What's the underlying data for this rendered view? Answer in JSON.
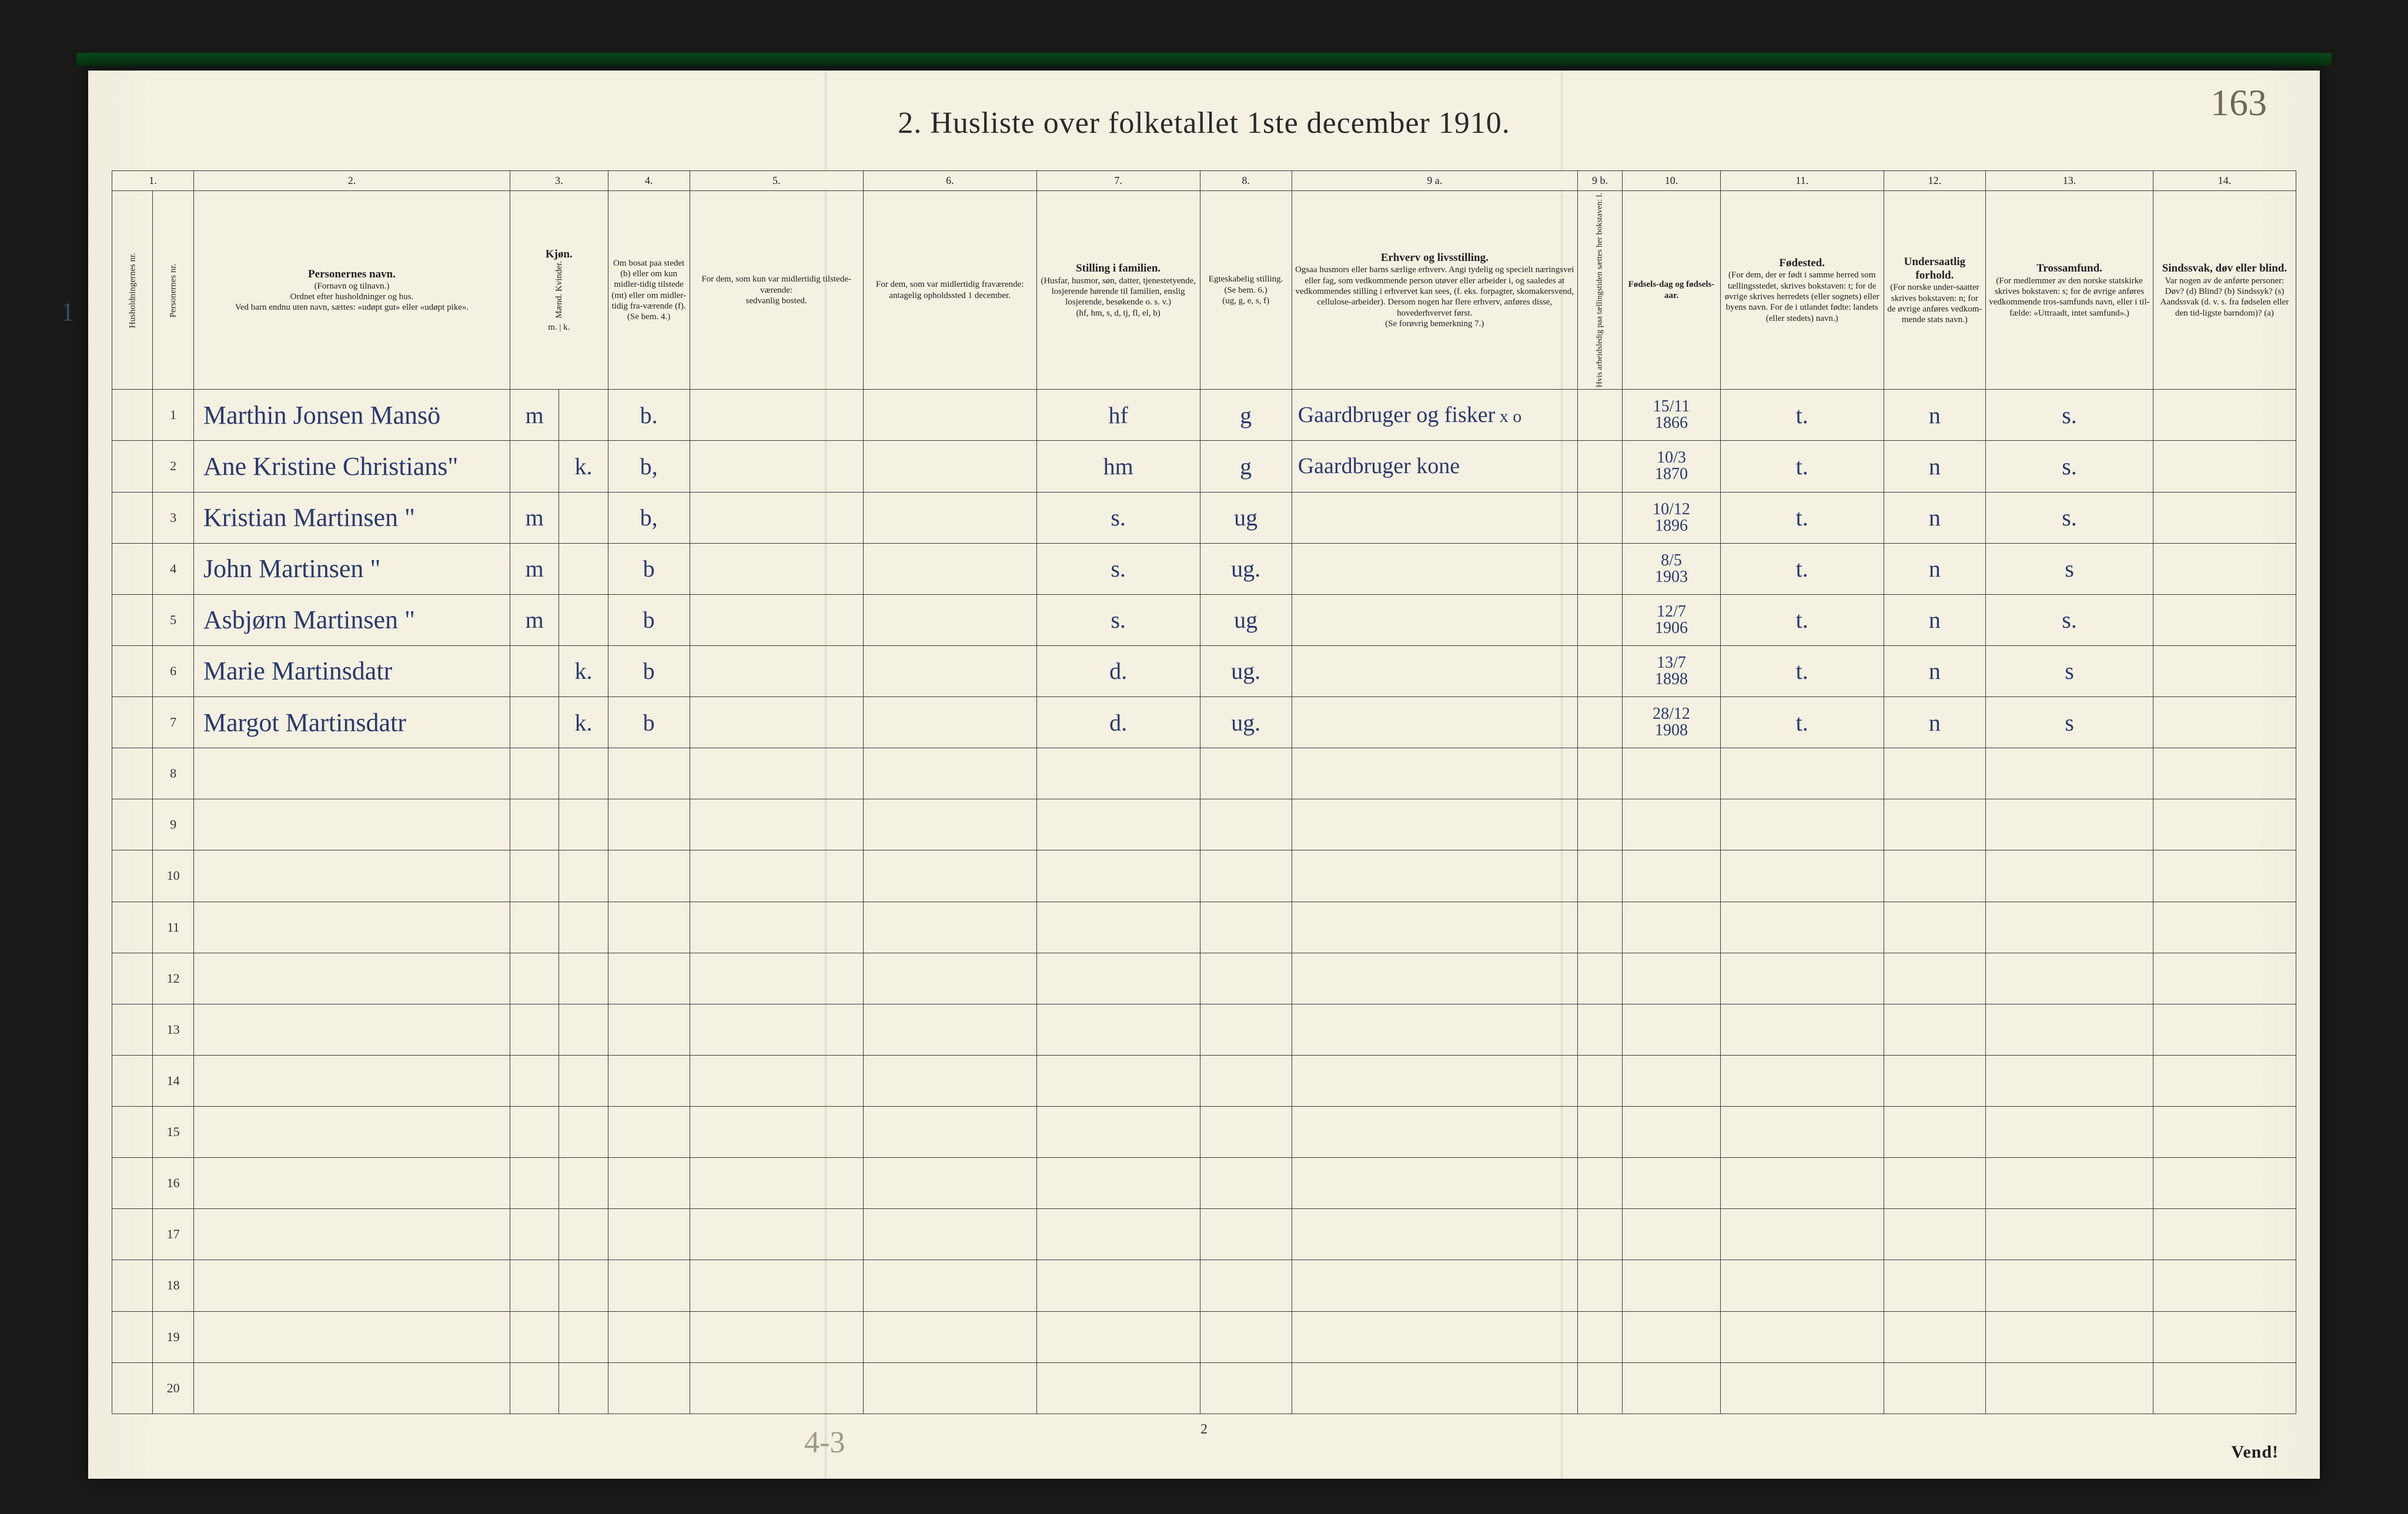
{
  "colors": {
    "page_bg": "#f4f0e2",
    "ink": "#2a2a2a",
    "rule": "#3a3a3a",
    "handwriting": "#2b3a6b",
    "pencil": "#9a9a8a",
    "frame": "#1a1a18",
    "green_edge": "#0a4a1a"
  },
  "handwritten_page_number": "163",
  "title": "2.  Husliste over folketallet 1ste december 1910.",
  "column_numbers": [
    "1.",
    "",
    "2.",
    "3.",
    "4.",
    "5.",
    "6.",
    "7.",
    "8.",
    "9 a.",
    "9 b.",
    "10.",
    "11.",
    "12.",
    "13.",
    "14."
  ],
  "headers": {
    "c1": "Husholdningernes nr.",
    "c1b": "Personernes nr.",
    "c2": {
      "main": "Personernes navn.",
      "sub1": "(Fornavn og tilnavn.)",
      "sub2": "Ordnet efter husholdninger og hus.",
      "sub3": "Ved barn endnu uten navn, sættes: «udøpt gut» eller «udøpt pike»."
    },
    "c3": {
      "main": "Kjøn.",
      "sub": "Mænd.  Kvinder.",
      "foot": "m. | k."
    },
    "c4": {
      "main": "Om bosat paa stedet (b) eller om kun midler-tidig tilstede (mt) eller om midler-tidig fra-værende (f).",
      "foot": "(Se bem. 4.)"
    },
    "c5": {
      "main": "For dem, som kun var midlertidig tilstede-værende:",
      "sub": "sedvanlig bosted."
    },
    "c6": {
      "main": "For dem, som var midlertidig fraværende:",
      "sub": "antagelig opholdssted 1 december."
    },
    "c7": {
      "main": "Stilling i familien.",
      "sub1": "(Husfar, husmor, søn, datter, tjenestetyende, losjerende hørende til familien, enslig losjerende, besøkende o. s. v.)",
      "foot": "(hf, hm, s, d, tj, fl, el, b)"
    },
    "c8": {
      "main": "Egteskabelig stilling.",
      "sub": "(Se bem. 6.)",
      "foot": "(ug, g, e, s, f)"
    },
    "c9a": {
      "main": "Erhverv og livsstilling.",
      "sub1": "Ogsaa husmors eller barns særlige erhverv. Angi tydelig og specielt næringsvei eller fag, som vedkommende person utøver eller arbeider i, og saaledes at vedkommendes stilling i erhvervet kan sees, (f. eks. forpagter, skomakersvend, cellulose-arbeider). Dersom nogen har flere erhverv, anføres disse, hovederhvervet først.",
      "foot": "(Se forøvrig bemerkning 7.)"
    },
    "c9b": "Hvis arbeidsledig paa tællingstiden sættes her bokstaven: l.",
    "c10": {
      "main": "Fødsels-dag og fødsels-aar."
    },
    "c11": {
      "main": "Fødested.",
      "sub1": "(For dem, der er født i samme herred som tællingsstedet, skrives bokstaven: t; for de øvrige skrives herredets (eller sognets) eller byens navn. For de i utlandet fødte: landets (eller stedets) navn.)"
    },
    "c12": {
      "main": "Undersaatlig forhold.",
      "sub1": "(For norske under-saatter skrives bokstaven: n; for de øvrige anføres vedkom-mende stats navn.)"
    },
    "c13": {
      "main": "Trossamfund.",
      "sub1": "(For medlemmer av den norske statskirke skrives bokstaven: s; for de øvrige anføres vedkommende tros-samfunds navn, eller i til-fælde: «Uttraadt, intet samfund».)"
    },
    "c14": {
      "main": "Sindssvak, døv eller blind.",
      "sub1": "Var nogen av de anførte personer:",
      "sub2": "Døv? (d)  Blind? (b)  Sindssyk? (s)  Aandssvak (d. v. s. fra fødselen eller den tid-ligste barndom)? (a)"
    }
  },
  "rows": [
    {
      "n": "1",
      "name": "Marthin Jonsen Mansö",
      "sex": "m",
      "res": "b.",
      "col7": "hf",
      "col8": "g",
      "col9a": "Gaardbruger og fisker",
      "col9a_mark": "x o",
      "col10": "15/11\n1866",
      "col11": "t.",
      "col12": "n",
      "col13": "s."
    },
    {
      "n": "2",
      "name": "Ane Kristine Christians\"",
      "sex": "k.",
      "res": "b,",
      "col7": "hm",
      "col8": "g",
      "col9a": "Gaardbruger kone",
      "col10": "10/3\n1870",
      "col11": "t.",
      "col12": "n",
      "col13": "s."
    },
    {
      "n": "3",
      "name": "Kristian Martinsen   \"",
      "sex": "m",
      "res": "b,",
      "col7": "s.",
      "col8": "ug",
      "col10": "10/12\n1896",
      "col11": "t.",
      "col12": "n",
      "col13": "s."
    },
    {
      "n": "4",
      "name": "John Martinsen   \"",
      "sex": "m",
      "res": "b",
      "col7": "s.",
      "col8": "ug.",
      "col10": "8/5\n1903",
      "col11": "t.",
      "col12": "n",
      "col13": "s"
    },
    {
      "n": "5",
      "name": "Asbjørn Martinsen \"",
      "sex": "m",
      "res": "b",
      "col7": "s.",
      "col8": "ug",
      "col10": "12/7\n1906",
      "col11": "t.",
      "col12": "n",
      "col13": "s."
    },
    {
      "n": "6",
      "name": "Marie Martinsdatr",
      "sex": "k.",
      "res": "b",
      "col7": "d.",
      "col8": "ug.",
      "col10": "13/7\n1898",
      "col11": "t.",
      "col12": "n",
      "col13": "s"
    },
    {
      "n": "7",
      "name": "Margot Martinsdatr",
      "sex": "k.",
      "res": "b",
      "col7": "d.",
      "col8": "ug.",
      "col10": "28/12\n1908",
      "col11": "t.",
      "col12": "n",
      "col13": "s"
    }
  ],
  "empty_rows": [
    "8",
    "9",
    "10",
    "11",
    "12",
    "13",
    "14",
    "15",
    "16",
    "17",
    "18",
    "19",
    "20"
  ],
  "left_margin_number": "1",
  "footer_printed_page": "2",
  "footer_pencil": "4-3",
  "vend": "Vend!",
  "column_widths_pct": [
    2.0,
    2.0,
    15.5,
    2.4,
    2.4,
    4.0,
    8.5,
    8.5,
    8.0,
    4.5,
    14.0,
    2.2,
    4.8,
    8.0,
    5.0,
    8.2
  ],
  "typography": {
    "title_pt": 52,
    "header_pt": 17,
    "body_hand_pt": 40,
    "rownum_pt": 22
  }
}
